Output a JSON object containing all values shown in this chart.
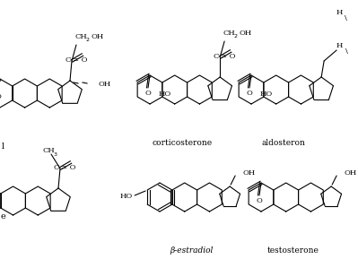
{
  "bg": "#ffffff",
  "lc": "#000000",
  "lw": 0.8,
  "rh": 16,
  "rp": 14,
  "labels": {
    "corticosterone": "corticosterone",
    "aldosterone": "aldosteron",
    "estradiol": "β-estradiol",
    "testosterone": "testosterone"
  },
  "fs_label": 6.5,
  "fs_chem": 6.0,
  "fs_sub": 4.0
}
